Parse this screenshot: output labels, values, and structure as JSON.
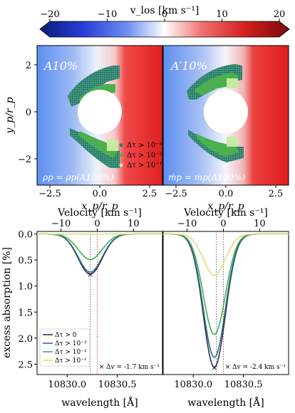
{
  "colorbar": {
    "label": "v_los [km s⁻¹]",
    "ticks": [
      "−20",
      "−10",
      "0",
      "10",
      "20"
    ],
    "tick_values": [
      -20,
      -10,
      0,
      10,
      20
    ],
    "colors": {
      "negative": "#0b1a7a",
      "zero": "#ffffff",
      "positive": "#7a0a0a"
    }
  },
  "maps": {
    "ylabel": "y_p/r_p",
    "xlabel": "x_p/r_p",
    "xticks": [
      "−2.5",
      "0.0",
      "2.5"
    ],
    "xtick_values": [
      -2.5,
      0,
      2.5
    ],
    "yticks": [
      "2",
      "0",
      "−2"
    ],
    "ytick_values": [
      2,
      0,
      -2
    ],
    "panels": [
      {
        "title": "A10%",
        "footer": "ρp = ρp(A100%)"
      },
      {
        "title": "A′10%",
        "footer": "ṁp = ṁp(A100%)"
      }
    ],
    "legend": [
      {
        "label": "Δτ > 10⁻³",
        "color": "#2e7d6b"
      },
      {
        "label": "Δτ > 10⁻²",
        "color": "#4caf50"
      },
      {
        "label": "Δτ > 10⁻¹",
        "color": "#c7e9a0"
      }
    ]
  },
  "chart_data": [
    {
      "type": "line",
      "title": "",
      "top_xlabel": "Velocity [km s⁻¹]",
      "top_xticks": [
        "−10",
        "0",
        "10"
      ],
      "xlabel": "wavelength [Å]",
      "ylabel": "excess absorption [%]",
      "xlim": [
        10829.7,
        10830.95
      ],
      "ylim": [
        2.7,
        -0.05
      ],
      "xticks": [
        "10830.0",
        "10830.5"
      ],
      "xtick_values": [
        10830.0,
        10830.5
      ],
      "yticks": [
        "0.0",
        "0.5",
        "1.0",
        "1.5",
        "2.0",
        "2.5"
      ],
      "ytick_values": [
        0,
        0.5,
        1.0,
        1.5,
        2.0,
        2.5
      ],
      "vlines": [
        10830.23,
        10830.3
      ],
      "center": 10830.23,
      "width": 0.12,
      "series": [
        {
          "name": "Δτ > 0",
          "color": "#2b2f63",
          "depth": 0.77
        },
        {
          "name": "Δτ > 10⁻³",
          "color": "#2a6f7a",
          "depth": 0.73
        },
        {
          "name": "Δτ > 10⁻²",
          "color": "#3fae50",
          "depth": 0.49
        },
        {
          "name": "Δτ > 10⁻¹",
          "color": "#dede7a",
          "depth": 0.0
        }
      ],
      "marker": {
        "x": 10830.23,
        "y": 0.77,
        "label": "×  Δv = -1.7 km s⁻¹"
      },
      "legend_position": "lower-left"
    },
    {
      "type": "line",
      "title": "",
      "top_xlabel": "Velocity [km s⁻¹]",
      "top_xticks": [
        "−10",
        "0",
        "10"
      ],
      "xlabel": "wavelength [Å]",
      "ylabel": "",
      "xlim": [
        10829.7,
        10830.95
      ],
      "ylim": [
        2.7,
        -0.05
      ],
      "xticks": [
        "10830.0",
        "10830.5"
      ],
      "xtick_values": [
        10830.0,
        10830.5
      ],
      "vlines": [
        10830.23,
        10830.3
      ],
      "center": 10830.21,
      "width": 0.11,
      "series": [
        {
          "name": "Δτ > 0",
          "color": "#2b2f63",
          "depth": 2.56
        },
        {
          "name": "Δτ > 10⁻³",
          "color": "#2a6f7a",
          "depth": 2.37
        },
        {
          "name": "Δτ > 10⁻²",
          "color": "#3fae50",
          "depth": 1.93
        },
        {
          "name": "Δτ > 10⁻¹",
          "color": "#dede7a",
          "depth": 0.79
        }
      ],
      "marker": {
        "x": 10830.21,
        "y": 2.56,
        "label": "×  Δv = -2.4 km s⁻¹"
      }
    }
  ]
}
